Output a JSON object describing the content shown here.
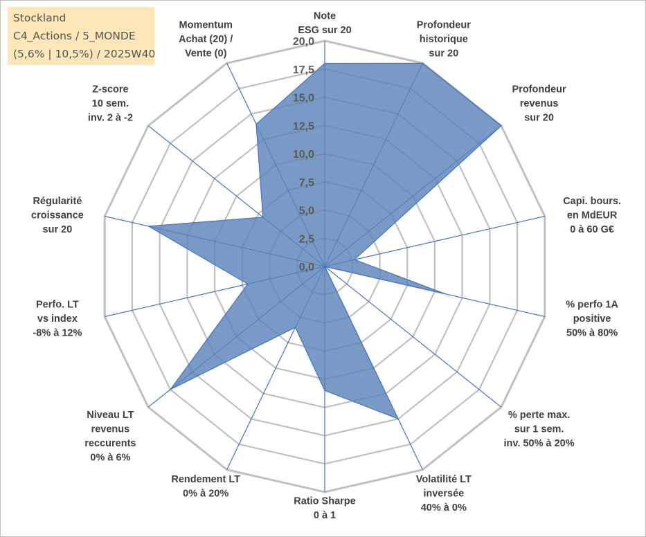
{
  "title_box": {
    "line1": "Stockland",
    "line2": "C4_Actions / 5_MONDE",
    "line3": "(5,6% | 10,5%) / 2025W40"
  },
  "colors": {
    "fill": "#5b84b8",
    "stroke": "#4472c4",
    "grid": "#c0c0c0",
    "title_bg": "#fde7b9"
  },
  "chart_data": {
    "type": "radar",
    "rmin": 0,
    "rmax": 20,
    "tick_step": 2.5,
    "tick_labels": [
      "0,0",
      "2,5",
      "5,0",
      "7,5",
      "10,0",
      "12,5",
      "15,0",
      "17,5",
      "20,0"
    ],
    "axes": [
      {
        "lines": [
          "Note",
          "ESG sur 20"
        ],
        "value": 18
      },
      {
        "lines": [
          "Profondeur",
          "historique",
          "sur 20"
        ],
        "value": 20
      },
      {
        "lines": [
          "Profondeur",
          "revenus",
          "sur 20"
        ],
        "value": 20
      },
      {
        "lines": [
          "Capi. bours.",
          "en MdEUR",
          "0 à 60 G€"
        ],
        "value": 2.7
      },
      {
        "lines": [
          "% perfo 1A",
          "positive",
          "50% à 80%"
        ],
        "value": 11
      },
      {
        "lines": [
          "% perte max.",
          "sur 1 sem.",
          "inv. 50% à 20%"
        ],
        "value": 0
      },
      {
        "lines": [
          "Volatilité LT",
          "inversée",
          "40% à 0%"
        ],
        "value": 15
      },
      {
        "lines": [
          "Ratio Sharpe",
          "0 à 1"
        ],
        "value": 11
      },
      {
        "lines": [
          "Rendement LT",
          "0% à 20%"
        ],
        "value": 6
      },
      {
        "lines": [
          "Niveau LT",
          "revenus",
          "reccurents",
          "0% à 6%"
        ],
        "value": 17.5
      },
      {
        "lines": [
          "Perfo. LT",
          "vs index",
          "-8% à 12%"
        ],
        "value": 7
      },
      {
        "lines": [
          "Régularité",
          "croissance",
          "sur 20"
        ],
        "value": 16
      },
      {
        "lines": [
          "Z-score",
          "10 sem.",
          "inv. 2 à -2"
        ],
        "value": 7
      },
      {
        "lines": [
          "Momentum",
          "Achat (20) /",
          "Vente (0)"
        ],
        "value": 14
      }
    ]
  }
}
